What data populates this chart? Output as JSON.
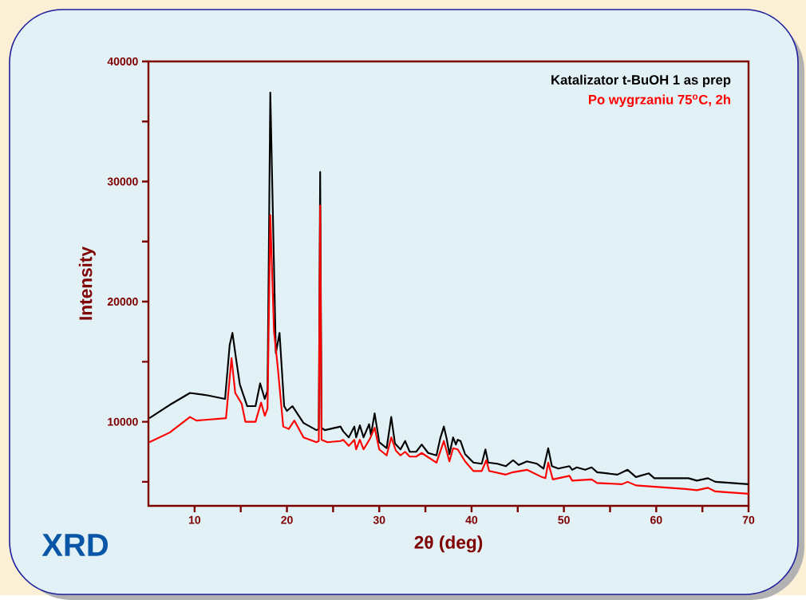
{
  "chart_data": {
    "type": "line",
    "xlabel": "2θ (deg)",
    "ylabel": "Intensity",
    "annotations": [
      "XRD"
    ],
    "xlim": [
      5,
      70
    ],
    "ylim": [
      3000,
      40000
    ],
    "xticks": [
      10,
      {
        "value": 15,
        "label": null
      },
      20,
      {
        "value": 25,
        "label": null
      },
      30,
      {
        "value": 35,
        "label": null
      },
      40,
      {
        "value": 45,
        "label": null
      },
      50,
      {
        "value": 55,
        "label": null
      },
      60,
      {
        "value": 65,
        "label": null
      },
      70
    ],
    "yticks": [
      {
        "value": 5000,
        "label": null
      },
      10000,
      {
        "value": 15000,
        "label": null
      },
      20000,
      {
        "value": 25000,
        "label": null
      },
      30000,
      {
        "value": 35000,
        "label": null
      },
      40000
    ],
    "legend": "top right",
    "grid": false,
    "marker": "none",
    "line_style": "solid",
    "series": [
      {
        "name": "Katalizator t-BuOH 1 as prep",
        "color": "#000000",
        "x": [
          5.1,
          7.3,
          9.5,
          11.4,
          13.3,
          13.8,
          14.1,
          14.5,
          14.9,
          15.7,
          16.6,
          17.1,
          17.6,
          17.9,
          18.2,
          18.55,
          18.8,
          19.2,
          19.7,
          20.0,
          20.6,
          21.8,
          23.2,
          23.45,
          23.6,
          23.75,
          24.1,
          25.8,
          26.1,
          26.7,
          27.3,
          27.5,
          27.9,
          28.3,
          28.9,
          29.1,
          29.5,
          30.0,
          30.8,
          31.3,
          31.7,
          32.3,
          32.8,
          33.3,
          34.0,
          34.6,
          35.3,
          36.2,
          36.6,
          37.0,
          37.3,
          37.6,
          38.0,
          38.3,
          38.5,
          38.8,
          39.3,
          40.2,
          41.1,
          41.5,
          41.8,
          42.8,
          43.7,
          44.5,
          45.1,
          46.0,
          47.1,
          47.8,
          48.3,
          48.7,
          49.4,
          50.6,
          50.9,
          51.4,
          52.3,
          53.0,
          53.6,
          55.8,
          56.9,
          57.8,
          59.2,
          59.8,
          63.5,
          64.4,
          65.6,
          66.4,
          70.0
        ],
        "values": [
          10300,
          11400,
          12400,
          12200,
          11900,
          16400,
          17400,
          15200,
          13100,
          11300,
          11300,
          13200,
          11900,
          12600,
          37400,
          null,
          15700,
          17400,
          11300,
          10900,
          11300,
          9900,
          9300,
          9400,
          30800,
          9500,
          9300,
          9600,
          9200,
          8700,
          9600,
          8700,
          9700,
          8700,
          9800,
          8900,
          10700,
          8300,
          7800,
          10400,
          8200,
          7700,
          8400,
          7500,
          7500,
          8100,
          7400,
          7200,
          8600,
          9600,
          8600,
          7300,
          8700,
          8100,
          8500,
          8400,
          7300,
          6600,
          6500,
          7700,
          6600,
          6500,
          6300,
          6800,
          6400,
          6700,
          6500,
          6100,
          7800,
          6300,
          6100,
          6300,
          6000,
          6200,
          6000,
          6200,
          5800,
          5600,
          6000,
          5400,
          5700,
          5300,
          5300,
          5100,
          5300,
          5000,
          4800
        ]
      },
      {
        "name": "Po wygrzaniu 75$^{o}$C, 2h",
        "color": "#ff0000",
        "x": [
          5.1,
          7.3,
          9.5,
          10.2,
          13.4,
          14.0,
          14.4,
          15.1,
          15.5,
          16.6,
          17.2,
          17.6,
          17.9,
          18.2,
          18.6,
          19.0,
          19.6,
          20.2,
          20.8,
          21.8,
          23.2,
          23.45,
          23.6,
          23.75,
          24.4,
          25.8,
          26.1,
          26.7,
          27.3,
          27.5,
          27.9,
          28.3,
          29.0,
          29.5,
          30.0,
          30.8,
          31.3,
          31.8,
          32.3,
          32.8,
          33.3,
          34.0,
          34.6,
          36.2,
          37.0,
          37.6,
          38.0,
          38.5,
          39.3,
          40.2,
          41.1,
          41.6,
          41.9,
          43.7,
          44.5,
          46.0,
          47.6,
          48.0,
          48.3,
          48.8,
          50.6,
          50.9,
          53.0,
          53.6,
          56.3,
          56.9,
          57.8,
          63.2,
          64.4,
          65.6,
          66.4,
          70.0
        ],
        "values": [
          8300,
          9100,
          10400,
          10100,
          10300,
          15300,
          12400,
          11500,
          10000,
          10000,
          11600,
          10500,
          11100,
          27200,
          17500,
          14600,
          9600,
          9400,
          10100,
          8700,
          8300,
          8400,
          28000,
          8500,
          8300,
          8400,
          8500,
          8000,
          8500,
          7700,
          8500,
          7700,
          8600,
          9500,
          7700,
          7200,
          8700,
          7600,
          7200,
          7500,
          7100,
          7100,
          7400,
          6600,
          8400,
          6700,
          7800,
          7700,
          6700,
          5900,
          5900,
          6800,
          5900,
          5600,
          5800,
          6000,
          5400,
          5300,
          6600,
          5200,
          5500,
          5100,
          5200,
          4900,
          4800,
          5000,
          4700,
          4400,
          4300,
          4500,
          4200,
          4000
        ]
      }
    ]
  }
}
